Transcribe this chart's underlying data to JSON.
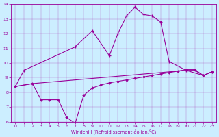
{
  "xlabel": "Windchill (Refroidissement éolien,°C)",
  "xlim": [
    -0.5,
    23.5
  ],
  "ylim": [
    6,
    14
  ],
  "xticks": [
    0,
    1,
    2,
    3,
    4,
    5,
    6,
    7,
    8,
    9,
    10,
    11,
    12,
    13,
    14,
    15,
    16,
    17,
    18,
    19,
    20,
    21,
    22,
    23
  ],
  "yticks": [
    6,
    7,
    8,
    9,
    10,
    11,
    12,
    13,
    14
  ],
  "bg_color": "#cceeff",
  "line_color": "#990099",
  "line1_x": [
    0,
    1,
    7,
    9,
    11,
    12,
    13,
    14,
    15,
    16,
    17,
    18,
    20,
    22,
    23
  ],
  "line1_y": [
    8.4,
    9.5,
    11.1,
    12.2,
    10.5,
    12.0,
    13.2,
    13.8,
    13.3,
    13.2,
    12.8,
    10.1,
    9.5,
    9.15,
    9.4
  ],
  "line2_x": [
    0,
    2,
    3,
    4,
    5,
    6,
    7,
    8,
    9,
    10,
    11,
    12,
    13,
    14,
    15,
    16,
    17,
    18,
    19,
    20,
    21,
    22,
    23
  ],
  "line2_y": [
    8.4,
    8.6,
    7.5,
    7.5,
    7.5,
    6.3,
    5.9,
    7.8,
    8.3,
    8.5,
    8.65,
    8.75,
    8.85,
    8.95,
    9.05,
    9.15,
    9.25,
    9.35,
    9.45,
    9.55,
    9.55,
    9.15,
    9.4
  ],
  "line3_x": [
    0,
    2,
    3,
    4,
    5,
    6,
    7,
    8,
    9,
    10,
    11,
    12,
    13,
    14,
    15,
    16,
    17,
    18,
    19,
    20,
    21,
    22,
    23
  ],
  "line3_y": [
    8.4,
    8.6,
    8.65,
    8.7,
    8.75,
    8.8,
    8.85,
    8.9,
    8.95,
    9.0,
    9.05,
    9.1,
    9.15,
    9.2,
    9.25,
    9.3,
    9.35,
    9.4,
    9.45,
    9.5,
    9.5,
    9.15,
    9.4
  ]
}
